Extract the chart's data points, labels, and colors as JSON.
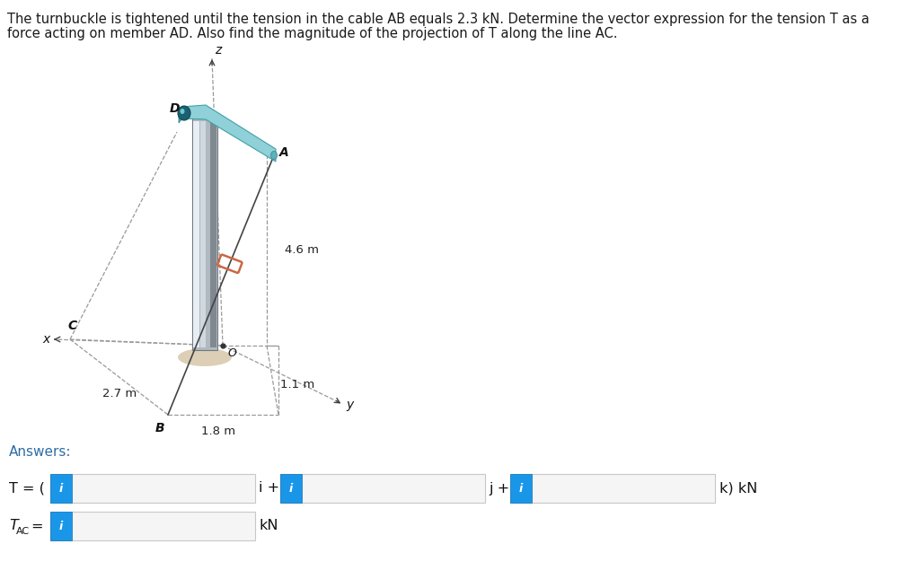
{
  "title_line1": "The turnbuckle is tightened until the tension in the cable AB equals 2.3 kN. Determine the vector expression for the tension T as a",
  "title_line2": "force acting on member AD. Also find the magnitude of the projection of T along the line AC.",
  "title_color": "#1a1a1a",
  "title_fontsize": 10.5,
  "answers_label": "Answers:",
  "answers_color": "#2e6da4",
  "answers_fontsize": 11,
  "bg_color": "#ffffff",
  "dim_46": "4.6 m",
  "dim_11": "1.1 m",
  "dim_18": "1.8 m",
  "dim_27": "2.7 m",
  "label_T_eq": "T = (",
  "label_i_plus": "i +",
  "label_j_plus": "j +",
  "label_k_kN": "k) kN",
  "label_kN": "kN",
  "info_blue": "#1a96e8",
  "info_blue_dark": "#1070b8",
  "box_fill": "#f8f8f8",
  "box_border": "#c0c0c0",
  "dash_color": "#999999",
  "cable_color": "#444444",
  "bar_light": "#d0d8e0",
  "bar_mid": "#b0b8c0",
  "bar_dark": "#808890",
  "bar_highlight": "#e8eef4",
  "bracket_top": "#90d0d8",
  "bracket_front": "#60a8b0",
  "bracket_dark": "#3888a0",
  "shadow_color": "#c0a878",
  "turnbuckle_color": "#cc6644",
  "axis_color": "#444444",
  "label_color": "#111111",
  "dim_color": "#222222"
}
